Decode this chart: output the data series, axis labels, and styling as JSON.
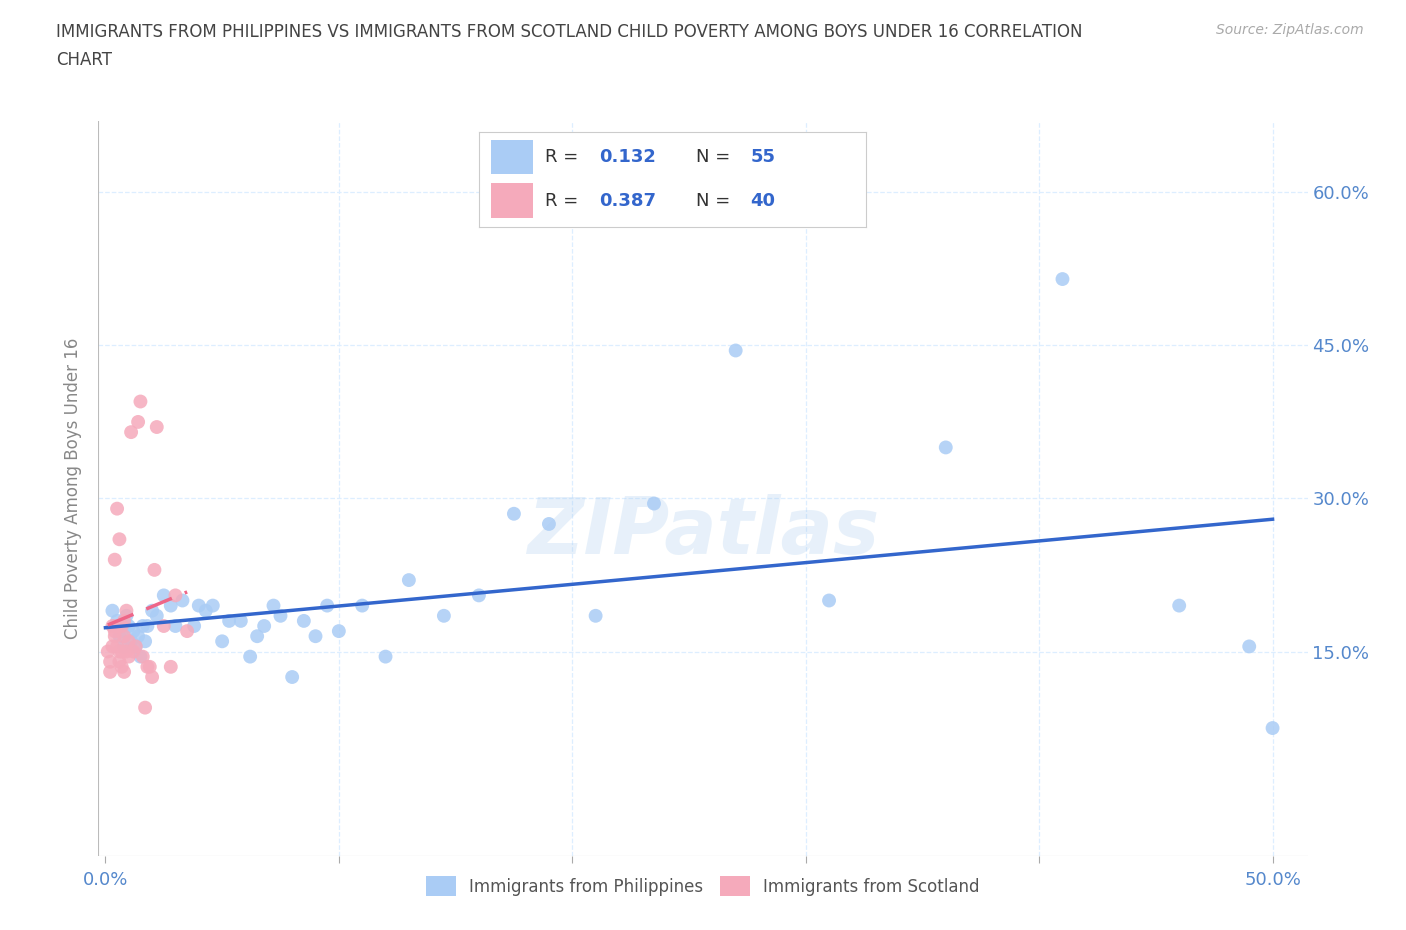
{
  "title": "IMMIGRANTS FROM PHILIPPINES VS IMMIGRANTS FROM SCOTLAND CHILD POVERTY AMONG BOYS UNDER 16 CORRELATION\nCHART",
  "source": "Source: ZipAtlas.com",
  "ylabel": "Child Poverty Among Boys Under 16",
  "ytick_values": [
    0.15,
    0.3,
    0.45,
    0.6
  ],
  "ytick_labels": [
    "15.0%",
    "30.0%",
    "45.0%",
    "60.0%"
  ],
  "xtick_values": [
    0.0,
    0.1,
    0.2,
    0.3,
    0.4,
    0.5
  ],
  "xlim": [
    -0.003,
    0.515
  ],
  "ylim": [
    -0.05,
    0.67
  ],
  "watermark": "ZIPatlas",
  "legend_phil_r": "0.132",
  "legend_phil_n": "55",
  "legend_scot_r": "0.387",
  "legend_scot_n": "40",
  "phil_color": "#aaccf5",
  "scot_color": "#f5aabb",
  "trendline_phil_color": "#3366cc",
  "trendline_scot_color": "#ee6688",
  "background_color": "#ffffff",
  "title_color": "#444444",
  "axis_label_color": "#5588cc",
  "grid_color": "#ddeeff",
  "phil_scatter_x": [
    0.003,
    0.004,
    0.005,
    0.006,
    0.007,
    0.008,
    0.009,
    0.01,
    0.011,
    0.012,
    0.013,
    0.014,
    0.015,
    0.016,
    0.017,
    0.018,
    0.02,
    0.022,
    0.025,
    0.028,
    0.03,
    0.033,
    0.038,
    0.04,
    0.043,
    0.046,
    0.05,
    0.053,
    0.058,
    0.062,
    0.065,
    0.068,
    0.072,
    0.075,
    0.08,
    0.085,
    0.09,
    0.095,
    0.1,
    0.11,
    0.12,
    0.13,
    0.145,
    0.16,
    0.175,
    0.19,
    0.21,
    0.235,
    0.27,
    0.31,
    0.36,
    0.41,
    0.46,
    0.49,
    0.5
  ],
  "phil_scatter_y": [
    0.19,
    0.175,
    0.18,
    0.165,
    0.17,
    0.155,
    0.185,
    0.175,
    0.16,
    0.17,
    0.155,
    0.165,
    0.145,
    0.175,
    0.16,
    0.175,
    0.19,
    0.185,
    0.205,
    0.195,
    0.175,
    0.2,
    0.175,
    0.195,
    0.19,
    0.195,
    0.16,
    0.18,
    0.18,
    0.145,
    0.165,
    0.175,
    0.195,
    0.185,
    0.125,
    0.18,
    0.165,
    0.195,
    0.17,
    0.195,
    0.145,
    0.22,
    0.185,
    0.205,
    0.285,
    0.275,
    0.185,
    0.295,
    0.445,
    0.2,
    0.35,
    0.515,
    0.195,
    0.155,
    0.075
  ],
  "scot_scatter_x": [
    0.001,
    0.002,
    0.002,
    0.003,
    0.003,
    0.004,
    0.004,
    0.004,
    0.005,
    0.005,
    0.005,
    0.006,
    0.006,
    0.006,
    0.007,
    0.007,
    0.007,
    0.008,
    0.008,
    0.008,
    0.009,
    0.009,
    0.01,
    0.01,
    0.011,
    0.012,
    0.013,
    0.014,
    0.015,
    0.016,
    0.017,
    0.018,
    0.019,
    0.02,
    0.021,
    0.022,
    0.025,
    0.028,
    0.03,
    0.035
  ],
  "scot_scatter_y": [
    0.15,
    0.13,
    0.14,
    0.155,
    0.175,
    0.165,
    0.24,
    0.17,
    0.155,
    0.29,
    0.175,
    0.15,
    0.26,
    0.14,
    0.135,
    0.175,
    0.15,
    0.13,
    0.18,
    0.165,
    0.19,
    0.15,
    0.16,
    0.145,
    0.365,
    0.15,
    0.155,
    0.375,
    0.395,
    0.145,
    0.095,
    0.135,
    0.135,
    0.125,
    0.23,
    0.37,
    0.175,
    0.135,
    0.205,
    0.17
  ]
}
